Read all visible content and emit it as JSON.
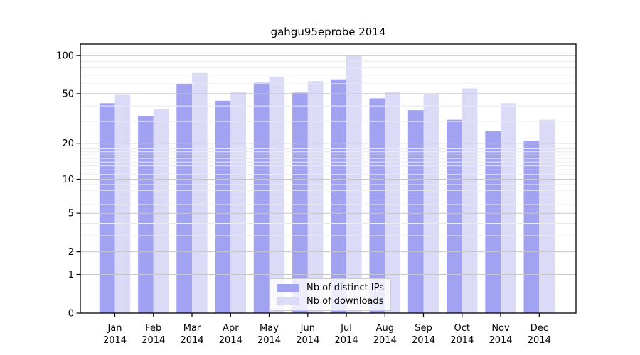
{
  "chart_data": {
    "type": "bar",
    "title": "gahgu95eprobe 2014",
    "year": "2014",
    "months": [
      "Jan",
      "Feb",
      "Mar",
      "Apr",
      "May",
      "Jun",
      "Jul",
      "Aug",
      "Sep",
      "Oct",
      "Nov",
      "Dec"
    ],
    "series": [
      {
        "name": "Nb of distinct IPs",
        "slug": "distinct-ips",
        "color": "#a2a2f2",
        "values": [
          42,
          33,
          60,
          44,
          61,
          51,
          65,
          46,
          37,
          31,
          25,
          21
        ]
      },
      {
        "name": "Nb of downloads",
        "slug": "downloads",
        "color": "#dbdbf8",
        "values": [
          49,
          38,
          73,
          52,
          68,
          63,
          100,
          52,
          50,
          55,
          42,
          31
        ]
      }
    ],
    "y_scale": "log1p",
    "y_ticks": [
      100,
      50,
      20,
      10,
      5,
      2,
      1,
      0
    ],
    "ylim": [
      0,
      133
    ],
    "grid": {
      "enabled": true,
      "major_color": "#c6c6c6",
      "minor_color": "#ebebeb",
      "minor_values": [
        3,
        4,
        6,
        7,
        8,
        9,
        11,
        12,
        13,
        14,
        15,
        16,
        17,
        18,
        19,
        30,
        40,
        60,
        70,
        80,
        90
      ]
    },
    "legend_position": "lower center",
    "axis_color": "#000000",
    "text_color": "#000000"
  }
}
